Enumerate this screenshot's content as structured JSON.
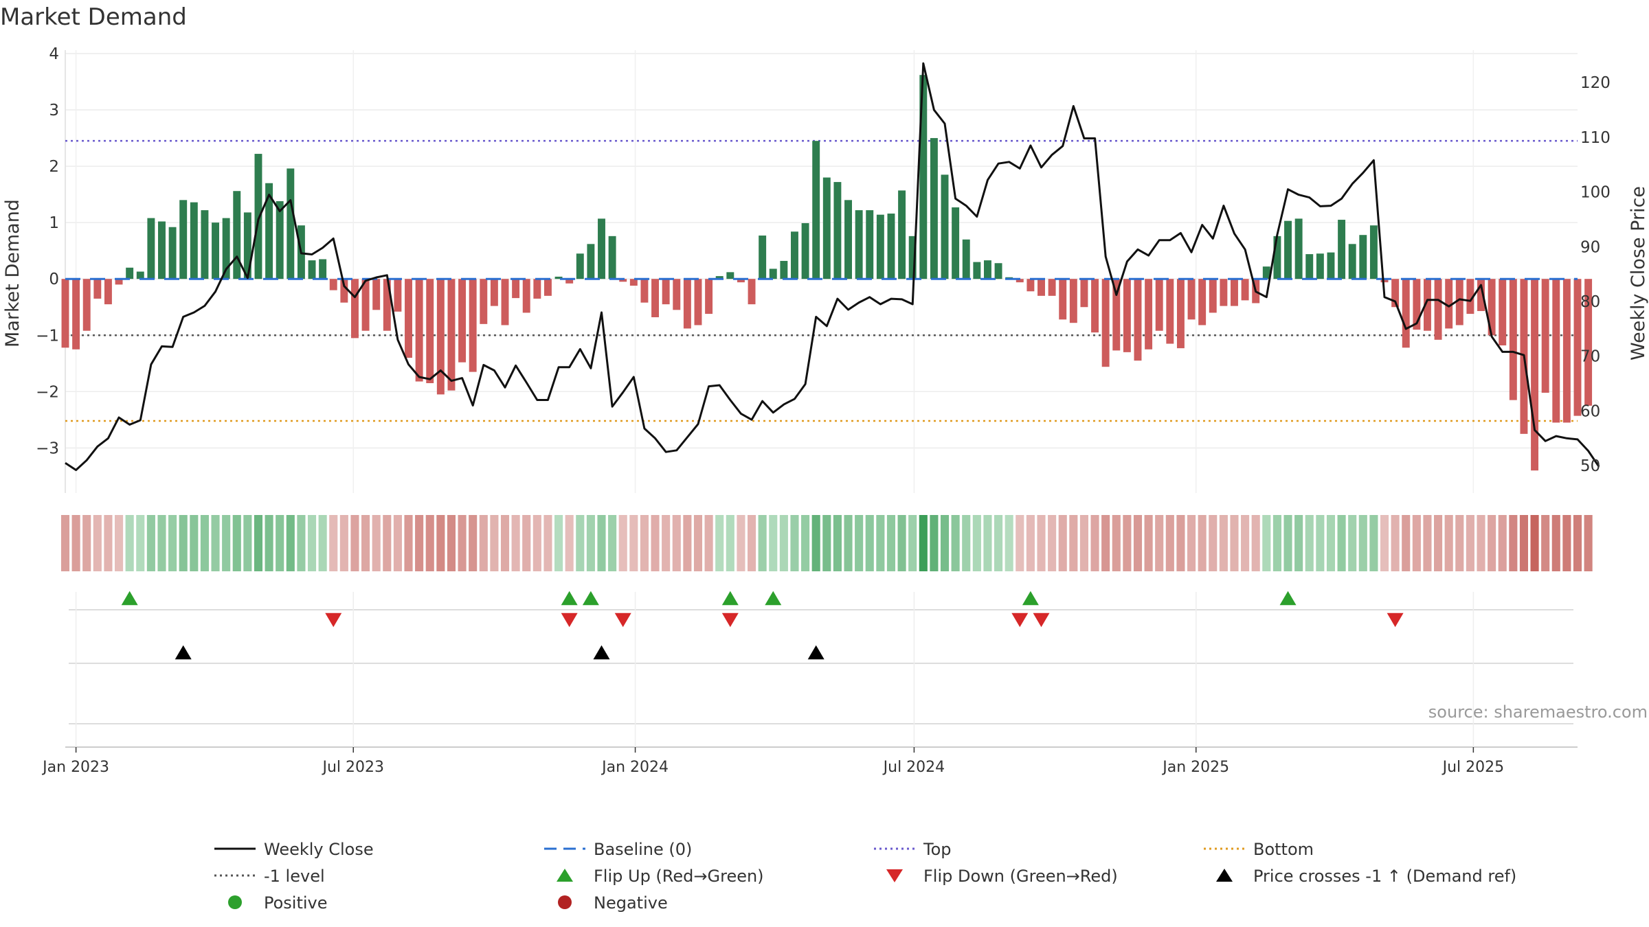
{
  "chart_data": {
    "type": "bar",
    "title": "Market Demand",
    "ylabel": "Market Demand",
    "y2label": "Weekly Close Price",
    "ylim": [
      -3.8,
      4.0
    ],
    "y2lim": [
      45.0,
      125.3
    ],
    "yticks": [
      -3,
      -2,
      -1,
      0,
      1,
      2,
      3,
      4
    ],
    "y2ticks": [
      50,
      60,
      70,
      80,
      90,
      100,
      110,
      120
    ],
    "x_start": "2022-12-25",
    "x_end": "2025-09-07",
    "xticks": [
      {
        "date": "2023-01-01",
        "label": "Jan 2023"
      },
      {
        "date": "2023-07-01",
        "label": "Jul 2023"
      },
      {
        "date": "2024-01-01",
        "label": "Jan 2024"
      },
      {
        "date": "2024-07-01",
        "label": "Jul 2024"
      },
      {
        "date": "2025-01-01",
        "label": "Jan 2025"
      },
      {
        "date": "2025-07-01",
        "label": "Jul 2025"
      }
    ],
    "first_week": "2022-12-25",
    "demand": [
      -1.22,
      -1.25,
      -0.92,
      -0.35,
      -0.45,
      -0.1,
      0.2,
      0.13,
      1.08,
      1.02,
      0.92,
      1.4,
      1.36,
      1.22,
      1.0,
      1.08,
      1.56,
      1.18,
      2.22,
      1.7,
      1.38,
      1.96,
      0.95,
      0.33,
      0.35,
      -0.2,
      -0.42,
      -1.05,
      -0.92,
      -0.55,
      -0.92,
      -0.58,
      -1.4,
      -1.82,
      -1.85,
      -2.05,
      -1.98,
      -1.48,
      -1.65,
      -0.8,
      -0.48,
      -0.82,
      -0.34,
      -0.6,
      -0.35,
      -0.3,
      0.04,
      -0.08,
      0.45,
      0.62,
      1.07,
      0.76,
      -0.05,
      -0.12,
      -0.42,
      -0.68,
      -0.45,
      -0.55,
      -0.88,
      -0.82,
      -0.62,
      0.05,
      0.12,
      -0.06,
      -0.45,
      0.77,
      0.18,
      0.32,
      0.84,
      0.99,
      2.45,
      1.8,
      1.72,
      1.4,
      1.22,
      1.22,
      1.14,
      1.16,
      1.57,
      0.76,
      3.62,
      2.5,
      1.85,
      1.27,
      0.7,
      0.3,
      0.33,
      0.28,
      0.03,
      -0.06,
      -0.22,
      -0.3,
      -0.3,
      -0.72,
      -0.78,
      -0.5,
      -0.95,
      -1.56,
      -1.27,
      -1.3,
      -1.45,
      -1.25,
      -0.92,
      -1.15,
      -1.23,
      -0.72,
      -0.82,
      -0.6,
      -0.48,
      -0.48,
      -0.38,
      -0.43,
      0.22,
      0.76,
      1.03,
      1.07,
      0.44,
      0.45,
      0.47,
      1.05,
      0.62,
      0.78,
      0.95,
      -0.06,
      -0.5,
      -1.22,
      -0.9,
      -0.92,
      -1.08,
      -0.88,
      -0.82,
      -0.62,
      -0.57,
      -1.0,
      -1.18,
      -2.15,
      -2.75,
      -3.4,
      -2.02,
      -2.55,
      -2.55,
      -2.43,
      -2.25
    ],
    "weekly_close": [
      50.5,
      49.2,
      51.0,
      53.5,
      55.0,
      58.8,
      57.5,
      58.3,
      68.5,
      71.8,
      71.7,
      77.2,
      78.0,
      79.2,
      81.8,
      85.9,
      88.2,
      84.3,
      95.0,
      99.5,
      96.5,
      98.5,
      88.8,
      88.6,
      89.8,
      91.5,
      82.8,
      80.8,
      83.8,
      84.4,
      84.8,
      73.0,
      68.5,
      66.2,
      65.8,
      67.4,
      65.5,
      66.0,
      61.0,
      68.4,
      67.4,
      64.3,
      68.3,
      65.2,
      62.0,
      62.0,
      68.0,
      68.0,
      71.3,
      67.8,
      78.0,
      60.8,
      63.4,
      66.2,
      56.8,
      55.0,
      52.5,
      52.8,
      55.2,
      57.6,
      64.5,
      64.7,
      62.0,
      59.5,
      58.4,
      61.8,
      59.7,
      61.2,
      62.2,
      64.9,
      77.2,
      75.5,
      80.5,
      78.5,
      79.8,
      80.8,
      79.5,
      80.5,
      80.4,
      79.5,
      123.5,
      115.0,
      112.5,
      98.8,
      97.5,
      95.5,
      102.2,
      105.2,
      105.5,
      104.3,
      108.5,
      104.5,
      106.8,
      108.4,
      115.7,
      109.8,
      109.8,
      88.2,
      81.2,
      87.3,
      89.5,
      88.4,
      91.2,
      91.2,
      92.5,
      89.0,
      94.0,
      91.5,
      97.5,
      92.4,
      89.5,
      81.8,
      80.8,
      92.2,
      100.5,
      99.5,
      99.0,
      97.4,
      97.5,
      98.8,
      101.5,
      103.5,
      105.8,
      80.8,
      80.0,
      75.0,
      76.0,
      80.3,
      80.3,
      79.1,
      80.4,
      80.1,
      83.0,
      73.6,
      70.8,
      70.8,
      70.2,
      56.5,
      54.5,
      55.4,
      55.0,
      54.8,
      52.7,
      49.8
    ],
    "top_level": 2.45,
    "bottom_level": -2.52,
    "minus1_level": -1.0,
    "flip_up_weeks": [
      6,
      47,
      49,
      62,
      66,
      90,
      114
    ],
    "flip_down_weeks": [
      25,
      47,
      52,
      62,
      89,
      91,
      124
    ],
    "price_cross_weeks": [
      11,
      50,
      70
    ],
    "colors": {
      "positive_bar": "#2e7d4f",
      "negative_bar": "#cd5c5c",
      "price_line": "#111111",
      "baseline": "#2a6fd1",
      "top_line": "#6a5acd",
      "bottom_line": "#e09b20",
      "minus1_line": "#555555",
      "flip_up": "#2ca02c",
      "flip_down": "#d62728",
      "price_cross": "#000000",
      "positive_dot": "#2ca02c",
      "negative_dot": "#b22222"
    },
    "legend": [
      {
        "label": "Weekly Close",
        "kind": "line"
      },
      {
        "label": "Baseline (0)",
        "kind": "dash"
      },
      {
        "label": "Top",
        "kind": "dot-top"
      },
      {
        "label": "Bottom",
        "kind": "dot-bottom"
      },
      {
        "label": "-1 level",
        "kind": "dot-minus1"
      },
      {
        "label": "Flip Up (Red→Green)",
        "kind": "tri-up"
      },
      {
        "label": "Flip Down (Green→Red)",
        "kind": "tri-down"
      },
      {
        "label": "Price crosses -1 ↑ (Demand ref)",
        "kind": "tri-black"
      },
      {
        "label": "Positive",
        "kind": "dot-pos"
      },
      {
        "label": "Negative",
        "kind": "dot-neg"
      }
    ]
  },
  "source_text": "source: sharemaestro.com"
}
